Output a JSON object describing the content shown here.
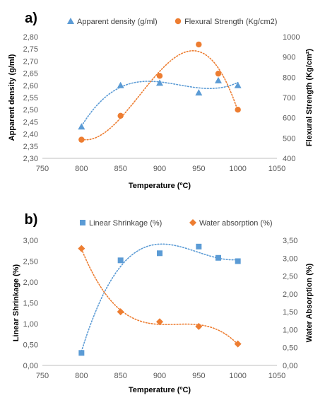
{
  "chart_data": [
    {
      "type": "scatter",
      "panel_label": "a)",
      "xlabel": "Temperature (ºC)",
      "ylabel_left": "Apparent density (g/ml)",
      "ylabel_right": "Flexural Strength (Kg/cm²)",
      "xlim": [
        750,
        1050
      ],
      "xticks": [
        "750",
        "800",
        "850",
        "900",
        "950",
        "1000",
        "1050"
      ],
      "ylim_left": [
        2.3,
        2.8
      ],
      "yticks_left": [
        "2,30",
        "2,35",
        "2,40",
        "2,45",
        "2,50",
        "2,55",
        "2,60",
        "2,65",
        "2,70",
        "2,75",
        "2,80"
      ],
      "ylim_right": [
        400,
        1000
      ],
      "yticks_right": [
        "400",
        "500",
        "600",
        "700",
        "800",
        "900",
        "1000"
      ],
      "legend_position": "top",
      "grid": false,
      "series": [
        {
          "name": "Apparent density (g/ml)",
          "axis": "left",
          "marker": "triangle",
          "color": "#5B9BD5",
          "trendline": "polynomial, dotted",
          "x": [
            800,
            850,
            900,
            950,
            975,
            1000
          ],
          "y": [
            2.43,
            2.6,
            2.61,
            2.57,
            2.62,
            2.6
          ]
        },
        {
          "name": "Flexural Strength (Kg/cm2)",
          "axis": "right",
          "marker": "circle",
          "color": "#ED7D31",
          "trendline": "polynomial, dotted",
          "x": [
            800,
            850,
            900,
            950,
            975,
            1000
          ],
          "y": [
            492,
            610,
            807,
            962,
            818,
            640
          ]
        }
      ]
    },
    {
      "type": "scatter",
      "panel_label": "b)",
      "xlabel": "Temperature (ºC)",
      "ylabel_left": "Linear Shrinkage (%)",
      "ylabel_right": "Water Absorption (%)",
      "xlim": [
        750,
        1050
      ],
      "xticks": [
        "750",
        "800",
        "850",
        "900",
        "950",
        "1000",
        "1050"
      ],
      "ylim_left": [
        0,
        3
      ],
      "yticks_left": [
        "0,00",
        "0,50",
        "1,00",
        "1,50",
        "2,00",
        "2,50",
        "3,00"
      ],
      "ylim_right": [
        0,
        3.5
      ],
      "yticks_right": [
        "0,00",
        "0,50",
        "1,00",
        "1,50",
        "2,00",
        "2,50",
        "3,00",
        "3,50"
      ],
      "legend_position": "top",
      "grid": false,
      "series": [
        {
          "name": "Linear Shrinkage (%)",
          "axis": "left",
          "marker": "square",
          "color": "#5B9BD5",
          "trendline": "polynomial, dotted",
          "x": [
            800,
            850,
            900,
            950,
            975,
            1000
          ],
          "y": [
            0.3,
            2.52,
            2.69,
            2.85,
            2.58,
            2.5
          ]
        },
        {
          "name": "Water absorption (%)",
          "axis": "right",
          "marker": "diamond",
          "color": "#ED7D31",
          "trendline": "polynomial, dotted",
          "x": [
            800,
            850,
            900,
            950,
            1000
          ],
          "y": [
            3.27,
            1.5,
            1.22,
            1.09,
            0.6
          ]
        }
      ]
    }
  ]
}
